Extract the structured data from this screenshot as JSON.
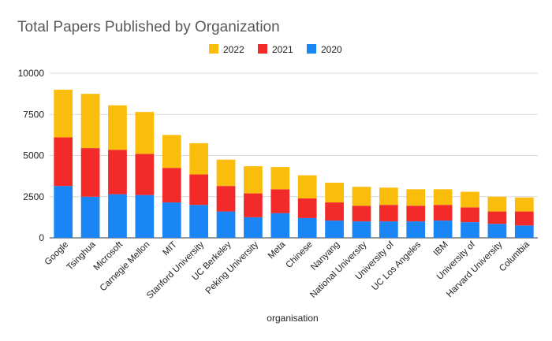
{
  "chart_data": {
    "type": "bar",
    "stacked": true,
    "title": "Total Papers Published by Organization",
    "xlabel": "organisation",
    "ylabel": "",
    "ylim": [
      0,
      10000
    ],
    "yticks": [
      "0",
      "2500",
      "5000",
      "7500",
      "10000"
    ],
    "grid": true,
    "legend_position": "top",
    "legend_order": [
      "2022",
      "2021",
      "2020"
    ],
    "categories": [
      "Google",
      "Tsinghua",
      "Microsoft",
      "Carnegie Mellon",
      "MIT",
      "Stanford University",
      "UC Berkeley",
      "Peking University",
      "Meta",
      "Chinese",
      "Nanyang",
      "National University",
      "University of",
      "UC Los Angeles",
      "IBM",
      "University of",
      "Harvard University",
      "Columbia"
    ],
    "series": [
      {
        "name": "2020",
        "color": "#1a86f5",
        "values": [
          3150,
          2500,
          2650,
          2600,
          2150,
          2000,
          1600,
          1250,
          1500,
          1200,
          1050,
          1000,
          1000,
          1000,
          1050,
          950,
          850,
          750
        ]
      },
      {
        "name": "2021",
        "color": "#f22a2a",
        "values": [
          2950,
          2950,
          2700,
          2500,
          2100,
          1850,
          1550,
          1450,
          1450,
          1200,
          1100,
          950,
          1000,
          950,
          950,
          900,
          750,
          850
        ]
      },
      {
        "name": "2022",
        "color": "#fbbd0b",
        "values": [
          2900,
          3300,
          2700,
          2550,
          2000,
          1900,
          1600,
          1650,
          1350,
          1400,
          1200,
          1150,
          1050,
          1000,
          950,
          950,
          900,
          850
        ]
      }
    ]
  }
}
